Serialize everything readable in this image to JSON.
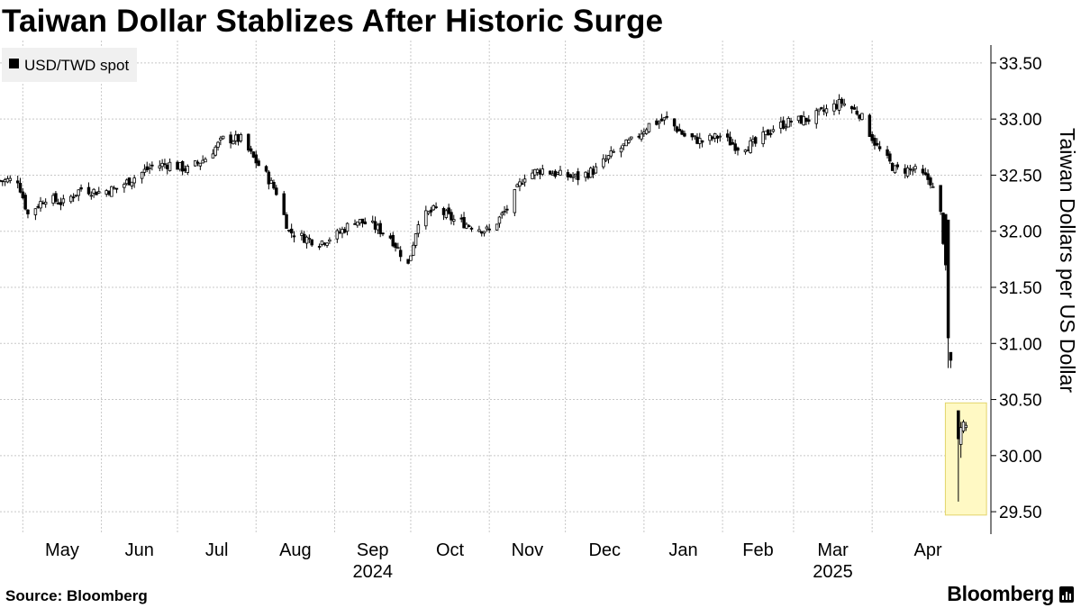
{
  "title": "Taiwan Dollar Stablizes After Historic Surge",
  "source": "Source: Bloomberg",
  "brand": "Bloomberg",
  "colors": {
    "candle": "#000000",
    "grid": "#c8c8c8",
    "legend_bg": "#f0f0f0",
    "highlight": "#fff9c4",
    "highlight_border": "#e2d46b"
  },
  "chart_data": {
    "type": "candlestick",
    "legend": [
      {
        "label": "USD/TWD spot",
        "placement": "top-left"
      }
    ],
    "ylabel": "Taiwan Dollars per US Dollar",
    "y_axis_side": "right",
    "ylim": [
      29.3,
      33.7
    ],
    "yticks": [
      "29.50",
      "30.00",
      "30.50",
      "31.00",
      "31.50",
      "32.00",
      "32.50",
      "33.00",
      "33.50"
    ],
    "xlim": [
      "2024-04-22",
      "2025-05-15"
    ],
    "x_month_ticks": [
      {
        "label": "May",
        "date": "2024-05-01"
      },
      {
        "label": "Jun",
        "date": "2024-06-01"
      },
      {
        "label": "Jul",
        "date": "2024-07-01"
      },
      {
        "label": "Aug",
        "date": "2024-08-01"
      },
      {
        "label": "Sep",
        "date": "2024-09-01"
      },
      {
        "label": "Oct",
        "date": "2024-10-01"
      },
      {
        "label": "Nov",
        "date": "2024-11-01"
      },
      {
        "label": "Dec",
        "date": "2024-12-01"
      },
      {
        "label": "Jan",
        "date": "2025-01-01"
      },
      {
        "label": "Feb",
        "date": "2025-02-01"
      },
      {
        "label": "Mar",
        "date": "2025-03-01"
      },
      {
        "label": "Apr",
        "date": "2025-04-01"
      }
    ],
    "x_year_labels": [
      {
        "label": "2024",
        "date": "2024-09-01"
      },
      {
        "label": "2025",
        "date": "2025-03-01"
      }
    ],
    "grid": true,
    "highlight": {
      "x_start": "2025-05-02",
      "x_end": "2025-05-09",
      "y_min": 29.47,
      "y_max": 30.47
    },
    "close_path": [
      [
        "2024-04-22",
        32.45
      ],
      [
        "2024-04-29",
        32.46
      ],
      [
        "2024-05-03",
        32.15
      ],
      [
        "2024-05-10",
        32.3
      ],
      [
        "2024-05-17",
        32.25
      ],
      [
        "2024-05-24",
        32.38
      ],
      [
        "2024-05-31",
        32.35
      ],
      [
        "2024-06-07",
        32.38
      ],
      [
        "2024-06-14",
        32.48
      ],
      [
        "2024-06-21",
        32.58
      ],
      [
        "2024-06-28",
        32.6
      ],
      [
        "2024-07-05",
        32.55
      ],
      [
        "2024-07-12",
        32.65
      ],
      [
        "2024-07-19",
        32.82
      ],
      [
        "2024-07-26",
        32.82
      ],
      [
        "2024-07-31",
        32.65
      ],
      [
        "2024-08-05",
        32.5
      ],
      [
        "2024-08-09",
        32.35
      ],
      [
        "2024-08-14",
        32.0
      ],
      [
        "2024-08-19",
        31.95
      ],
      [
        "2024-08-26",
        31.9
      ],
      [
        "2024-09-02",
        31.97
      ],
      [
        "2024-09-09",
        32.1
      ],
      [
        "2024-09-16",
        32.05
      ],
      [
        "2024-09-23",
        31.95
      ],
      [
        "2024-09-30",
        31.7
      ],
      [
        "2024-10-04",
        32.1
      ],
      [
        "2024-10-11",
        32.2
      ],
      [
        "2024-10-18",
        32.1
      ],
      [
        "2024-10-25",
        32.05
      ],
      [
        "2024-11-01",
        32.0
      ],
      [
        "2024-11-08",
        32.2
      ],
      [
        "2024-11-15",
        32.5
      ],
      [
        "2024-11-22",
        32.55
      ],
      [
        "2024-11-29",
        32.5
      ],
      [
        "2024-12-06",
        32.48
      ],
      [
        "2024-12-13",
        32.55
      ],
      [
        "2024-12-20",
        32.7
      ],
      [
        "2024-12-27",
        32.8
      ],
      [
        "2025-01-03",
        32.95
      ],
      [
        "2025-01-10",
        33.0
      ],
      [
        "2025-01-17",
        32.85
      ],
      [
        "2025-01-24",
        32.8
      ],
      [
        "2025-01-31",
        32.85
      ],
      [
        "2025-02-07",
        32.75
      ],
      [
        "2025-02-14",
        32.78
      ],
      [
        "2025-02-21",
        32.92
      ],
      [
        "2025-02-28",
        32.98
      ],
      [
        "2025-03-07",
        33.0
      ],
      [
        "2025-03-14",
        33.08
      ],
      [
        "2025-03-20",
        33.15
      ],
      [
        "2025-03-27",
        33.05
      ],
      [
        "2025-04-03",
        32.75
      ],
      [
        "2025-04-10",
        32.55
      ],
      [
        "2025-04-17",
        32.55
      ],
      [
        "2025-04-24",
        32.45
      ],
      [
        "2025-04-28",
        32.15
      ],
      [
        "2025-04-30",
        31.7
      ],
      [
        "2025-05-01",
        31.05
      ],
      [
        "2025-05-02",
        30.85
      ],
      [
        "2025-05-05",
        30.15
      ],
      [
        "2025-05-06",
        30.25
      ],
      [
        "2025-05-07",
        30.3
      ],
      [
        "2025-05-08",
        30.27
      ]
    ],
    "candles_final_days": [
      {
        "date": "2025-04-30",
        "open": 32.15,
        "high": 32.15,
        "low": 31.65,
        "close": 31.7
      },
      {
        "date": "2025-05-01",
        "open": 32.1,
        "high": 32.1,
        "low": 30.78,
        "close": 31.05
      },
      {
        "date": "2025-05-02",
        "open": 30.92,
        "high": 30.92,
        "low": 30.78,
        "close": 30.85
      },
      {
        "date": "2025-05-05",
        "open": 30.4,
        "high": 30.4,
        "low": 29.59,
        "close": 30.15
      },
      {
        "date": "2025-05-06",
        "open": 30.1,
        "high": 30.3,
        "low": 29.98,
        "close": 30.25
      },
      {
        "date": "2025-05-07",
        "open": 30.22,
        "high": 30.32,
        "low": 30.2,
        "close": 30.3
      },
      {
        "date": "2025-05-08",
        "open": 30.25,
        "high": 30.3,
        "low": 30.22,
        "close": 30.27
      }
    ]
  }
}
